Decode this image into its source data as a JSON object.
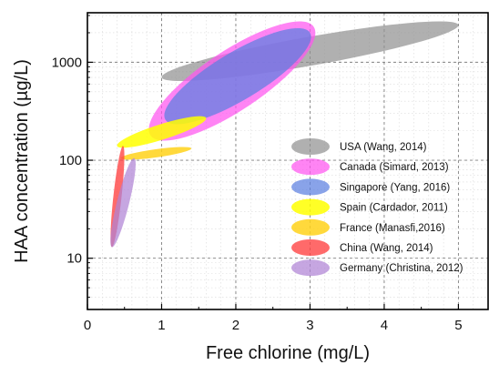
{
  "chart_data": {
    "type": "scatter",
    "xlabel": "Free chlorine (mg/L)",
    "ylabel": "HAA concentration (µg/L)",
    "xlim": [
      0,
      5.4
    ],
    "ylim": [
      3,
      3200
    ],
    "y_scale": "log",
    "x_ticks": [
      0,
      1,
      2,
      3,
      4,
      5
    ],
    "y_ticks": [
      10,
      100,
      1000
    ],
    "y_tick_labels": [
      "10",
      "100",
      "1000"
    ],
    "grid": true,
    "legend_position": "right",
    "series": [
      {
        "name": "USA (Wang, 2014)",
        "color": "#8e8e8e",
        "opacity": 0.7,
        "x_range": [
          1.0,
          5.0
        ],
        "y_range": [
          700,
          2400
        ]
      },
      {
        "name": "Canada (Simard, 2013)",
        "color": "#ff55f0",
        "opacity": 0.72,
        "x_range": [
          0.85,
          3.05
        ],
        "y_range": [
          180,
          2300
        ]
      },
      {
        "name": "Singapore (Yang, 2016)",
        "color": "#5b7fe0",
        "opacity": 0.72,
        "x_range": [
          1.05,
          3.0
        ],
        "y_range": [
          260,
          2000
        ]
      },
      {
        "name": "Spain (Cardador, 2011)",
        "color": "#ffff00",
        "opacity": 0.85,
        "x_range": [
          0.4,
          1.6
        ],
        "y_range": [
          140,
          270
        ]
      },
      {
        "name": "France (Manasfi,2016)",
        "color": "#ffd21a",
        "opacity": 0.85,
        "x_range": [
          0.45,
          1.4
        ],
        "y_range": [
          105,
          132
        ]
      },
      {
        "name": "China (Wang, 2014)",
        "color": "#ff4040",
        "opacity": 0.78,
        "x_range": [
          0.33,
          0.48
        ],
        "y_range": [
          13,
          140
        ]
      },
      {
        "name": "Germany (Christina, 2012)",
        "color": "#b083d6",
        "opacity": 0.72,
        "x_range": [
          0.33,
          0.63
        ],
        "y_range": [
          13,
          105
        ]
      }
    ]
  }
}
